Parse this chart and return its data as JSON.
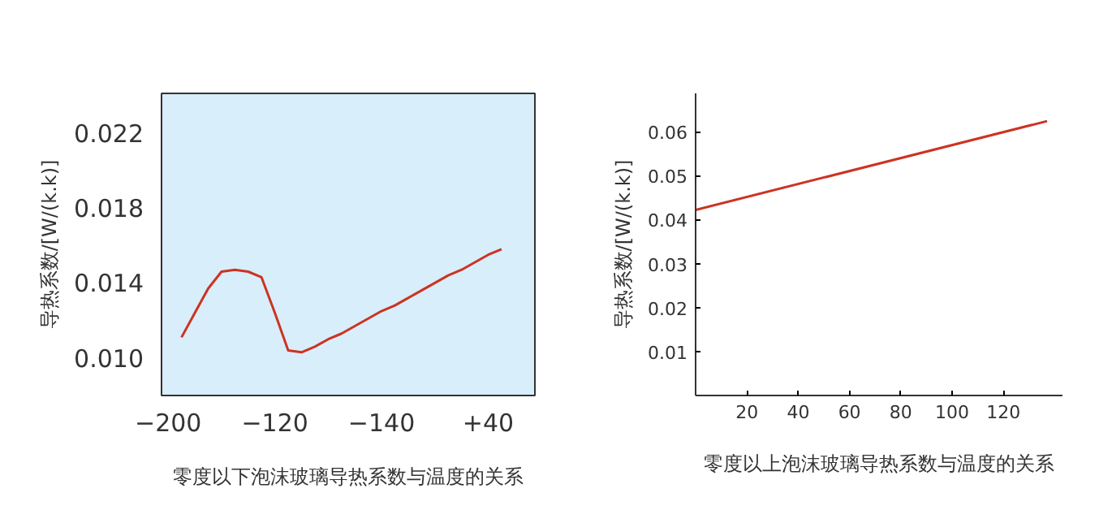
{
  "chart_data": [
    {
      "type": "line",
      "xlabel": "零度以下泡沫玻璃导热系数与温度的关系",
      "ylabel": "导热系数/[W/(k.k)]",
      "categories": [
        "−200",
        null,
        null,
        null,
        null,
        null,
        null,
        null,
        "−120",
        null,
        null,
        null,
        null,
        null,
        null,
        null,
        "−140",
        null,
        null,
        null,
        null,
        null,
        null,
        null,
        "+40",
        null,
        null,
        null
      ],
      "series": [
        {
          "color": "#cc3322",
          "values": [
            null,
            0.0111,
            0.0124,
            0.0137,
            0.0146,
            0.0147,
            0.0146,
            0.0143,
            0.0124,
            0.0104,
            0.0103,
            0.0106,
            0.011,
            0.0113,
            0.0117,
            0.0121,
            0.0125,
            0.0128,
            0.0132,
            0.0136,
            0.014,
            0.0144,
            0.0147,
            0.0151,
            0.0155,
            0.0158,
            null,
            null
          ]
        }
      ],
      "ylim": [
        0.008,
        0.0241
      ],
      "yticks": [
        {
          "value": 0.01,
          "label": "0.010"
        },
        {
          "value": 0.014,
          "label": "0.014"
        },
        {
          "value": 0.018,
          "label": "0.018"
        },
        {
          "value": 0.022,
          "label": "0.022"
        }
      ],
      "grid": false,
      "marker": "none",
      "line_style": "solid"
    },
    {
      "type": "line",
      "xlabel": "零度以上泡沫玻璃导热系数与温度的关系",
      "ylabel": "导热系数/[W/(k.k)]",
      "x": [
        0,
        137
      ],
      "series": [
        {
          "color": "#cc3322",
          "values": [
            0.0422,
            0.0624
          ]
        }
      ],
      "xlim": [
        0,
        143
      ],
      "ylim": [
        0,
        0.0687
      ],
      "xticks": [
        20,
        40,
        60,
        80,
        100,
        120
      ],
      "yticks": [
        0.01,
        0.02,
        0.03,
        0.04,
        0.05,
        0.06
      ],
      "grid": false,
      "marker": "none",
      "line_style": "solid"
    }
  ]
}
